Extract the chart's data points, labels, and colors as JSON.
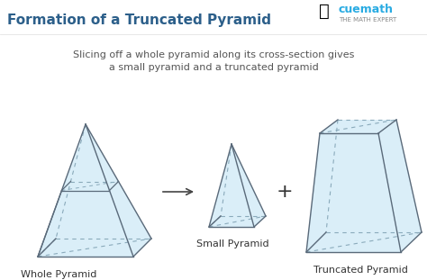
{
  "title": "Formation of a Truncated Pyramid",
  "title_color": "#2c5f8a",
  "subtitle": "Slicing off a whole pyramid along its cross-section gives\na small pyramid and a truncated pyramid",
  "subtitle_color": "#555555",
  "bg_color": "#ffffff",
  "face_color": "#daeef8",
  "edge_color": "#5a6a7a",
  "dashed_color": "#8aaabb",
  "label_whole": "Whole Pyramid",
  "label_small": "Small Pyramid",
  "label_truncated": "Truncated Pyramid",
  "label_color": "#333333",
  "arrow_color": "#444444",
  "plus_color": "#333333",
  "cuemath_blue": "#29abe2",
  "cuemath_orange": "#f7941d"
}
